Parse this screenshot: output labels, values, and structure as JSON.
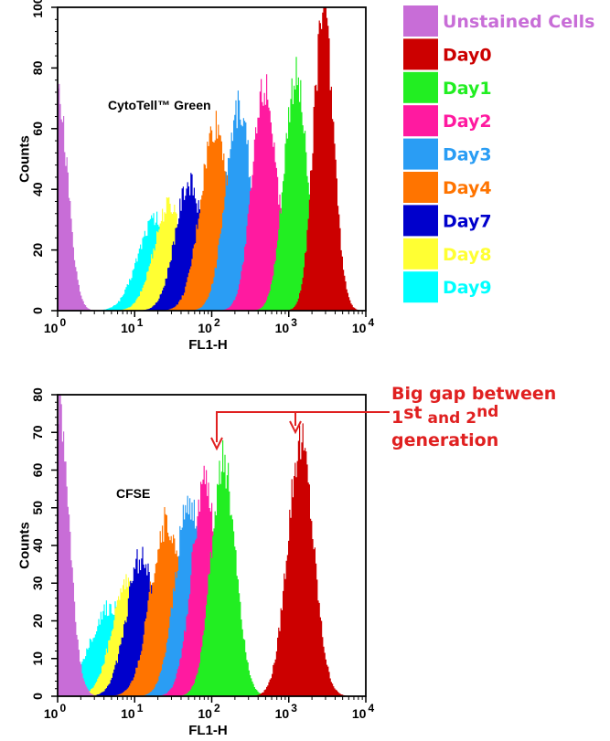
{
  "legend": {
    "items": [
      {
        "label": "Unstained Cells",
        "color": "#c86dd7"
      },
      {
        "label": "Day0",
        "color": "#cc0000"
      },
      {
        "label": "Day1",
        "color": "#22ee22"
      },
      {
        "label": "Day2",
        "color": "#ff1aa0"
      },
      {
        "label": "Day3",
        "color": "#2a9df4"
      },
      {
        "label": "Day4",
        "color": "#ff7400"
      },
      {
        "label": "Day7",
        "color": "#0000cc"
      },
      {
        "label": "Day8",
        "color": "#ffff33"
      },
      {
        "label": "Day9",
        "color": "#00ffff"
      }
    ]
  },
  "annotation": {
    "line1": "Big gap between",
    "line2_a": "1",
    "line2_sup1": "st",
    "line2_b": " and 2",
    "line2_sup2": "nd",
    "line3": "generation",
    "color": "#e02020"
  },
  "chart_data": [
    {
      "type": "area",
      "label": "CytoTell™ Green",
      "xlabel": "FL1-H",
      "ylabel": "Counts",
      "x_scale": "log",
      "xlim": [
        1,
        10000
      ],
      "ylim": [
        0,
        100
      ],
      "y_ticks": [
        0,
        20,
        40,
        60,
        80,
        100
      ],
      "x_ticks": [
        {
          "value": 1,
          "base": "10",
          "exp": "0"
        },
        {
          "value": 10,
          "base": "10",
          "exp": "1"
        },
        {
          "value": 100,
          "base": "10",
          "exp": "2"
        },
        {
          "value": 1000,
          "base": "10",
          "exp": "3"
        },
        {
          "value": 10000,
          "base": "10",
          "exp": "4"
        }
      ],
      "series": [
        {
          "name": "Day9",
          "color": "#00ffff",
          "peak_x": 18,
          "peak_count": 30,
          "log_sd": 0.22
        },
        {
          "name": "Day8",
          "color": "#ffff33",
          "peak_x": 28,
          "peak_count": 35,
          "log_sd": 0.2
        },
        {
          "name": "Day7",
          "color": "#0000cc",
          "peak_x": 50,
          "peak_count": 42,
          "log_sd": 0.18
        },
        {
          "name": "Day4",
          "color": "#ff7400",
          "peak_x": 110,
          "peak_count": 61,
          "log_sd": 0.19
        },
        {
          "name": "Day3",
          "color": "#2a9df4",
          "peak_x": 220,
          "peak_count": 67,
          "log_sd": 0.17
        },
        {
          "name": "Day2",
          "color": "#ff1aa0",
          "peak_x": 480,
          "peak_count": 74,
          "log_sd": 0.16
        },
        {
          "name": "Day1",
          "color": "#22ee22",
          "peak_x": 1200,
          "peak_count": 77,
          "log_sd": 0.15
        },
        {
          "name": "Day0",
          "color": "#cc0000",
          "peak_x": 2800,
          "peak_count": 100,
          "log_sd": 0.13
        },
        {
          "name": "Unstained Cells",
          "color": "#c86dd7",
          "peak_x": 1,
          "peak_count": 70,
          "log_sd": 0.13
        }
      ]
    },
    {
      "type": "area",
      "label": "CFSE",
      "xlabel": "FL1-H",
      "ylabel": "Counts",
      "x_scale": "log",
      "xlim": [
        1,
        10000
      ],
      "ylim": [
        0,
        80
      ],
      "y_ticks": [
        0,
        10,
        20,
        30,
        40,
        50,
        60,
        70,
        80
      ],
      "x_ticks": [
        {
          "value": 1,
          "base": "10",
          "exp": "0"
        },
        {
          "value": 10,
          "base": "10",
          "exp": "1"
        },
        {
          "value": 100,
          "base": "10",
          "exp": "2"
        },
        {
          "value": 1000,
          "base": "10",
          "exp": "3"
        },
        {
          "value": 10000,
          "base": "10",
          "exp": "4"
        }
      ],
      "series": [
        {
          "name": "Day9",
          "color": "#00ffff",
          "peak_x": 5,
          "peak_count": 24,
          "log_sd": 0.28
        },
        {
          "name": "Day8",
          "color": "#ffff33",
          "peak_x": 8,
          "peak_count": 30,
          "log_sd": 0.2
        },
        {
          "name": "Day7",
          "color": "#0000cc",
          "peak_x": 12,
          "peak_count": 37,
          "log_sd": 0.19
        },
        {
          "name": "Day4",
          "color": "#ff7400",
          "peak_x": 25,
          "peak_count": 46,
          "log_sd": 0.2
        },
        {
          "name": "Day3",
          "color": "#2a9df4",
          "peak_x": 50,
          "peak_count": 51,
          "log_sd": 0.18
        },
        {
          "name": "Day2",
          "color": "#ff1aa0",
          "peak_x": 80,
          "peak_count": 56,
          "log_sd": 0.17
        },
        {
          "name": "Day1",
          "color": "#22ee22",
          "peak_x": 140,
          "peak_count": 62,
          "log_sd": 0.16
        },
        {
          "name": "Day0",
          "color": "#cc0000",
          "peak_x": 1400,
          "peak_count": 67,
          "log_sd": 0.17
        },
        {
          "name": "Unstained Cells",
          "color": "#c86dd7",
          "peak_x": 1,
          "peak_count": 80,
          "log_sd": 0.14
        }
      ]
    }
  ]
}
